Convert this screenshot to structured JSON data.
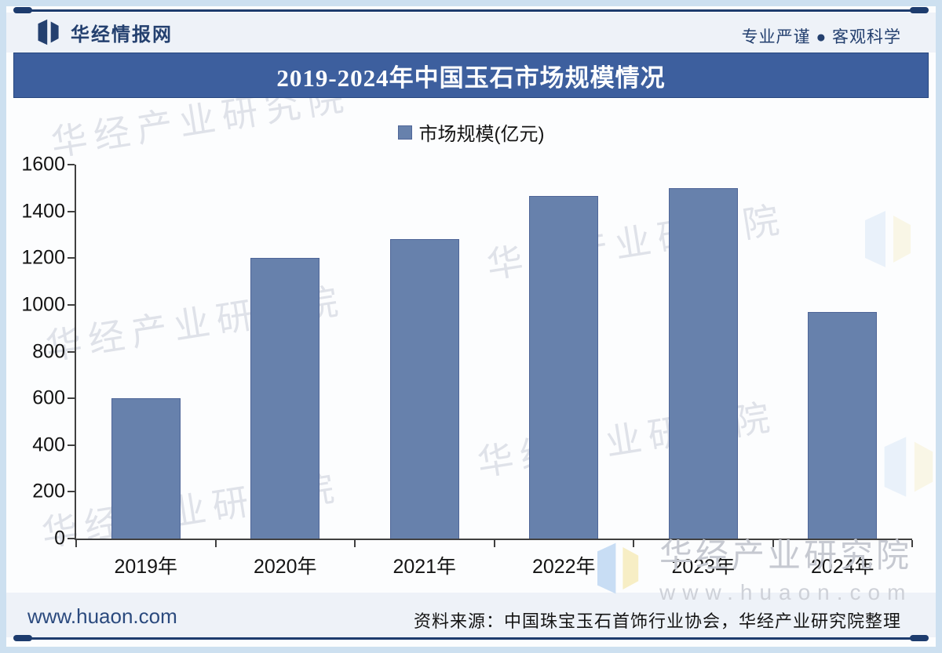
{
  "header": {
    "logo_text": "华经情报网",
    "tagline": "专业严谨 ● 客观科学"
  },
  "title_bar": {
    "title": "2019-2024年中国玉石市场规模情况"
  },
  "legend": {
    "label": "市场规模(亿元)"
  },
  "footer": {
    "website": "www.huaon.com",
    "source": "资料来源：中国珠宝玉石首饰行业协会，华经产业研究院整理"
  },
  "watermark": {
    "name": "华经产业研究院",
    "url": "www.huaon.com"
  },
  "colors": {
    "bar": "#6781ac",
    "bar_border": "#4f6698",
    "title_bar_bg": "#3d5f9e",
    "navy": "#1d3c6e",
    "frame": "#cde0f0"
  },
  "chart_data": {
    "type": "bar",
    "title": "2019-2024年中国玉石市场规模情况",
    "legend": [
      "市场规模(亿元)"
    ],
    "categories": [
      "2019年",
      "2020年",
      "2021年",
      "2022年",
      "2023年",
      "2024年"
    ],
    "values": [
      600,
      1200,
      1280,
      1465,
      1500,
      970
    ],
    "unit": "亿元",
    "xlabel": "",
    "ylabel": "",
    "ylim": [
      0,
      1600
    ],
    "ytick_step": 200,
    "yticks": [
      0,
      200,
      400,
      600,
      800,
      1000,
      1200,
      1400,
      1600
    ],
    "grid": false,
    "legend_position": "top"
  }
}
